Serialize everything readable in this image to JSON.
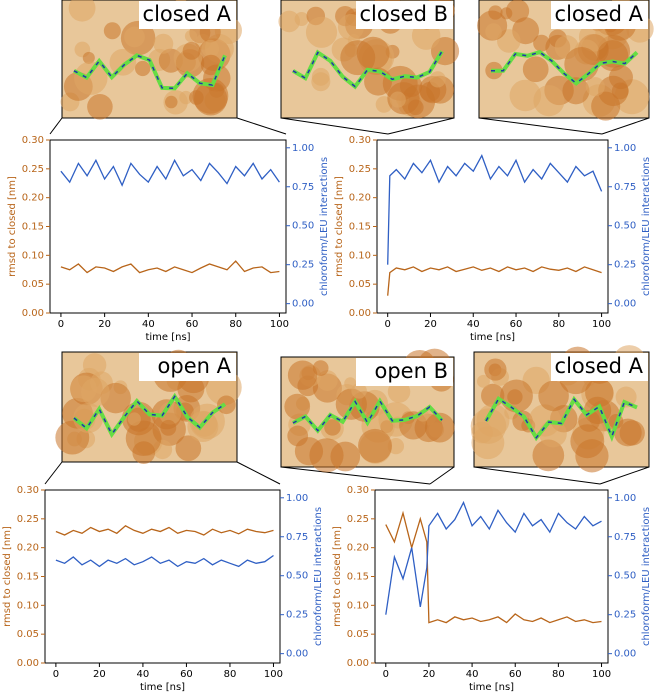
{
  "chart_data": [
    {
      "type": "line",
      "xlabel": "time [ns]",
      "ylabel": "rmsd to closed [nm]",
      "y2label": "chloroform/LEU interactions",
      "annotations": [
        "closed A"
      ],
      "x": [
        0,
        4,
        8,
        12,
        16,
        20,
        24,
        28,
        32,
        36,
        40,
        44,
        48,
        52,
        56,
        60,
        64,
        68,
        72,
        76,
        80,
        84,
        88,
        92,
        96,
        100
      ],
      "series": [
        {
          "color": "#b8651a",
          "values": [
            0.08,
            0.075,
            0.085,
            0.07,
            0.08,
            0.078,
            0.072,
            0.08,
            0.085,
            0.07,
            0.075,
            0.078,
            0.072,
            0.08,
            0.075,
            0.07,
            0.078,
            0.085,
            0.08,
            0.075,
            0.09,
            0.072,
            0.078,
            0.08,
            0.07,
            0.072
          ]
        },
        {
          "color": "#2f5fc4",
          "axis": "y2",
          "values": [
            0.85,
            0.78,
            0.9,
            0.82,
            0.92,
            0.8,
            0.88,
            0.76,
            0.9,
            0.83,
            0.78,
            0.88,
            0.8,
            0.92,
            0.82,
            0.86,
            0.79,
            0.9,
            0.84,
            0.77,
            0.88,
            0.82,
            0.9,
            0.8,
            0.86,
            0.78
          ]
        }
      ],
      "xlim": [
        -5,
        103
      ],
      "xticks": [
        0,
        20,
        40,
        60,
        80,
        100
      ],
      "ylim": [
        0,
        0.3
      ],
      "yticks": [
        {
          "value": 0,
          "label": "0.00"
        },
        {
          "value": 0.05,
          "label": "0.05"
        },
        {
          "value": 0.1,
          "label": "0.10"
        },
        {
          "value": 0.15,
          "label": "0.15"
        },
        {
          "value": 0.2,
          "label": "0.20"
        },
        {
          "value": 0.25,
          "label": "0.25"
        },
        {
          "value": 0.3,
          "label": "0.30"
        }
      ],
      "y2lim": [
        -0.06,
        1.05
      ],
      "y2ticks": [
        {
          "value": 0,
          "label": "0.00"
        },
        {
          "value": 0.25,
          "label": "0.25"
        },
        {
          "value": 0.5,
          "label": "0.50"
        },
        {
          "value": 0.75,
          "label": "0.75"
        },
        {
          "value": 1,
          "label": "1.00"
        }
      ]
    },
    {
      "type": "line",
      "xlabel": "time [ns]",
      "ylabel": "rmsd to closed [nm]",
      "y2label": "chloroform/LEU interactions",
      "annotations": [
        "closed B",
        "closed A"
      ],
      "x": [
        0,
        1,
        4,
        8,
        12,
        16,
        20,
        24,
        28,
        32,
        36,
        40,
        44,
        48,
        52,
        56,
        60,
        64,
        68,
        72,
        76,
        80,
        84,
        88,
        92,
        96,
        100
      ],
      "series": [
        {
          "color": "#b8651a",
          "values": [
            0.03,
            0.07,
            0.078,
            0.075,
            0.08,
            0.072,
            0.078,
            0.075,
            0.08,
            0.072,
            0.076,
            0.08,
            0.074,
            0.078,
            0.072,
            0.08,
            0.075,
            0.078,
            0.072,
            0.08,
            0.076,
            0.074,
            0.078,
            0.072,
            0.08,
            0.075,
            0.07
          ]
        },
        {
          "color": "#2f5fc4",
          "axis": "y2",
          "values": [
            0.25,
            0.82,
            0.86,
            0.8,
            0.9,
            0.84,
            0.92,
            0.78,
            0.88,
            0.82,
            0.9,
            0.85,
            0.95,
            0.8,
            0.88,
            0.82,
            0.92,
            0.78,
            0.86,
            0.8,
            0.9,
            0.84,
            0.78,
            0.88,
            0.82,
            0.85,
            0.72
          ]
        }
      ],
      "xlim": [
        -5,
        103
      ],
      "xticks": [
        0,
        20,
        40,
        60,
        80,
        100
      ],
      "ylim": [
        0,
        0.3
      ],
      "yticks": [
        {
          "value": 0,
          "label": "0.00"
        },
        {
          "value": 0.05,
          "label": "0.05"
        },
        {
          "value": 0.1,
          "label": "0.10"
        },
        {
          "value": 0.15,
          "label": "0.15"
        },
        {
          "value": 0.2,
          "label": "0.20"
        },
        {
          "value": 0.25,
          "label": "0.25"
        },
        {
          "value": 0.3,
          "label": "0.30"
        }
      ],
      "y2lim": [
        -0.06,
        1.05
      ],
      "y2ticks": [
        {
          "value": 0,
          "label": "0.00"
        },
        {
          "value": 0.25,
          "label": "0.25"
        },
        {
          "value": 0.5,
          "label": "0.50"
        },
        {
          "value": 0.75,
          "label": "0.75"
        },
        {
          "value": 1,
          "label": "1.00"
        }
      ]
    },
    {
      "type": "line",
      "xlabel": "time [ns]",
      "ylabel": "rmsd to closed [nm]",
      "y2label": "chloroform/LEU interactions",
      "annotations": [
        "open A"
      ],
      "x": [
        0,
        4,
        8,
        12,
        16,
        20,
        24,
        28,
        32,
        36,
        40,
        44,
        48,
        52,
        56,
        60,
        64,
        68,
        72,
        76,
        80,
        84,
        88,
        92,
        96,
        100
      ],
      "series": [
        {
          "color": "#b8651a",
          "values": [
            0.228,
            0.222,
            0.23,
            0.225,
            0.235,
            0.228,
            0.232,
            0.225,
            0.238,
            0.23,
            0.225,
            0.232,
            0.228,
            0.235,
            0.225,
            0.23,
            0.228,
            0.222,
            0.232,
            0.226,
            0.23,
            0.224,
            0.232,
            0.228,
            0.226,
            0.23
          ]
        },
        {
          "color": "#2f5fc4",
          "axis": "y2",
          "values": [
            0.6,
            0.58,
            0.62,
            0.57,
            0.6,
            0.56,
            0.6,
            0.58,
            0.61,
            0.57,
            0.59,
            0.62,
            0.58,
            0.6,
            0.56,
            0.59,
            0.58,
            0.61,
            0.57,
            0.6,
            0.58,
            0.56,
            0.6,
            0.58,
            0.59,
            0.63
          ]
        }
      ],
      "xlim": [
        -5,
        103
      ],
      "xticks": [
        0,
        20,
        40,
        60,
        80,
        100
      ],
      "ylim": [
        0,
        0.3
      ],
      "yticks": [
        {
          "value": 0,
          "label": "0.00"
        },
        {
          "value": 0.05,
          "label": "0.05"
        },
        {
          "value": 0.1,
          "label": "0.10"
        },
        {
          "value": 0.15,
          "label": "0.15"
        },
        {
          "value": 0.2,
          "label": "0.20"
        },
        {
          "value": 0.25,
          "label": "0.25"
        },
        {
          "value": 0.3,
          "label": "0.30"
        }
      ],
      "y2lim": [
        -0.06,
        1.05
      ],
      "y2ticks": [
        {
          "value": 0,
          "label": "0.00"
        },
        {
          "value": 0.25,
          "label": "0.25"
        },
        {
          "value": 0.5,
          "label": "0.50"
        },
        {
          "value": 0.75,
          "label": "0.75"
        },
        {
          "value": 1,
          "label": "1.00"
        }
      ]
    },
    {
      "type": "line",
      "xlabel": "time [ns]",
      "ylabel": "rmsd to closed [nm]",
      "y2label": "chloroform/LEU interactions",
      "annotations": [
        "open B",
        "closed A"
      ],
      "x": [
        0,
        4,
        8,
        12,
        16,
        19,
        20,
        24,
        28,
        32,
        36,
        40,
        44,
        48,
        52,
        56,
        60,
        64,
        68,
        72,
        76,
        80,
        84,
        88,
        92,
        96,
        100
      ],
      "series": [
        {
          "color": "#b8651a",
          "values": [
            0.24,
            0.21,
            0.26,
            0.2,
            0.25,
            0.21,
            0.07,
            0.075,
            0.07,
            0.08,
            0.075,
            0.078,
            0.072,
            0.075,
            0.08,
            0.07,
            0.085,
            0.075,
            0.072,
            0.078,
            0.07,
            0.075,
            0.08,
            0.072,
            0.075,
            0.07,
            0.072
          ]
        },
        {
          "color": "#2f5fc4",
          "axis": "y2",
          "values": [
            0.25,
            0.62,
            0.48,
            0.68,
            0.3,
            0.55,
            0.82,
            0.9,
            0.8,
            0.86,
            0.97,
            0.82,
            0.88,
            0.8,
            0.92,
            0.84,
            0.78,
            0.9,
            0.82,
            0.86,
            0.78,
            0.9,
            0.84,
            0.8,
            0.88,
            0.82,
            0.85
          ]
        }
      ],
      "xlim": [
        -5,
        103
      ],
      "xticks": [
        0,
        20,
        40,
        60,
        80,
        100
      ],
      "ylim": [
        0,
        0.3
      ],
      "yticks": [
        {
          "value": 0,
          "label": "0.00"
        },
        {
          "value": 0.05,
          "label": "0.05"
        },
        {
          "value": 0.1,
          "label": "0.10"
        },
        {
          "value": 0.15,
          "label": "0.15"
        },
        {
          "value": 0.2,
          "label": "0.20"
        },
        {
          "value": 0.25,
          "label": "0.25"
        },
        {
          "value": 0.3,
          "label": "0.30"
        }
      ],
      "y2lim": [
        -0.06,
        1.05
      ],
      "y2ticks": [
        {
          "value": 0,
          "label": "0.00"
        },
        {
          "value": 0.25,
          "label": "0.25"
        },
        {
          "value": 0.5,
          "label": "0.50"
        },
        {
          "value": 0.75,
          "label": "0.75"
        },
        {
          "value": 1,
          "label": "1.00"
        }
      ]
    }
  ]
}
